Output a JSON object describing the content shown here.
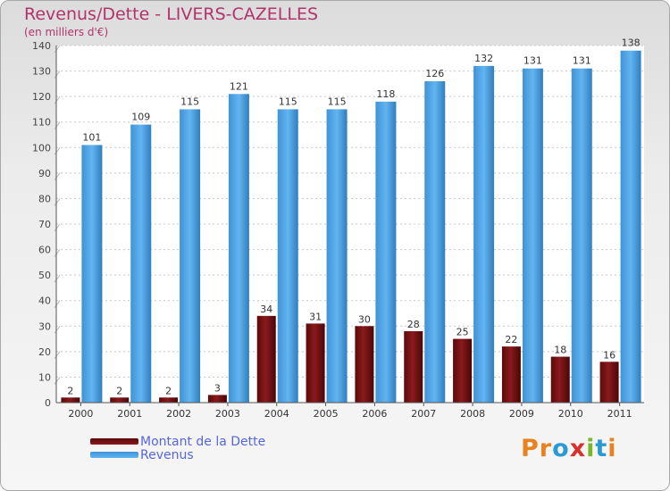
{
  "title": "Revenus/Dette - LIVERS-CAZELLES",
  "subtitle": "(en milliers d'€)",
  "chart_data": {
    "type": "bar",
    "title": "Revenus/Dette - LIVERS-CAZELLES",
    "subtitle": "(en milliers d'€)",
    "categories": [
      "2000",
      "2001",
      "2002",
      "2003",
      "2004",
      "2005",
      "2006",
      "2007",
      "2008",
      "2009",
      "2010",
      "2011"
    ],
    "series": [
      {
        "name": "Montant de la Dette",
        "values": [
          2,
          2,
          2,
          3,
          34,
          31,
          30,
          28,
          25,
          22,
          18,
          16
        ],
        "color": "#7a1214"
      },
      {
        "name": "Revenus",
        "values": [
          101,
          109,
          115,
          121,
          115,
          115,
          118,
          126,
          132,
          131,
          131,
          138
        ],
        "color": "#4aa3e6"
      }
    ],
    "ylim": [
      0,
      140
    ],
    "yticks": [
      0,
      10,
      20,
      30,
      40,
      50,
      60,
      70,
      80,
      90,
      100,
      110,
      120,
      130,
      140
    ],
    "grid": true,
    "legend": "bottom-left"
  },
  "legend": [
    {
      "label": "Montant de la Dette",
      "color": "#7a1214"
    },
    {
      "label": "Revenus",
      "color": "#4aa3e6"
    }
  ],
  "logo": {
    "text": "Proxiti",
    "letters": [
      {
        "char": "P",
        "color": "#e8821e"
      },
      {
        "char": "r",
        "color": "#e8821e"
      },
      {
        "char": "o",
        "color": "#2a9ad4"
      },
      {
        "char": "x",
        "color": "#d8312c"
      },
      {
        "char": "i",
        "color": "#7ab82a"
      },
      {
        "char": "t",
        "color": "#2a9ad4"
      },
      {
        "char": "i",
        "color": "#e8821e"
      }
    ]
  }
}
